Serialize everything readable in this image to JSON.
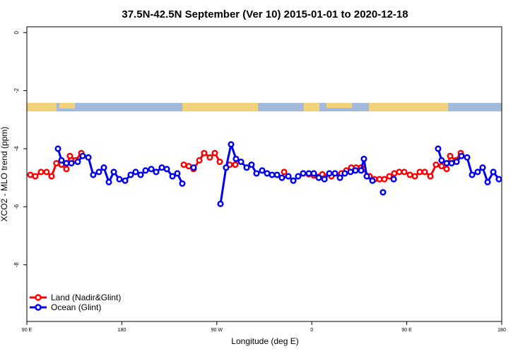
{
  "chart_data": {
    "type": "line",
    "title": "37.5N-42.5N September (Ver 10)   2015-01-01 to 2020-12-18",
    "x_label": "Longitude (deg E)",
    "y_label": "XCO2 - MLO trend (ppm)",
    "xlim": [
      90,
      540
    ],
    "ylim": [
      -9.95,
      0.2
    ],
    "xticks": [
      {
        "value": 90,
        "label": "90 E"
      },
      180,
      {
        "value": 270,
        "label": "90 W"
      },
      {
        "value": 360,
        "label": "0"
      },
      {
        "value": 450,
        "label": "90 E"
      },
      {
        "value": 540,
        "label": "180"
      }
    ],
    "yticks": [
      0,
      -2,
      -4,
      -6,
      -8
    ],
    "legend": "bottom-left",
    "series": [
      {
        "name": "Land (Nadir&Glint)",
        "color": "#ff0000",
        "x": [
          93.3,
          98,
          103.4,
          108.7,
          113.4,
          118,
          122.8,
          127.5,
          130.8,
          136.2,
          141.6,
          null,
          238.7,
          243.4,
          248,
          253.4,
          258,
          263.4,
          268.1,
          272.8,
          null,
          282.2,
          287.5,
          null,
          333.8,
          null,
          357.2,
          361.9,
          370,
          378.6,
          388,
          392.7,
          397.4,
          402,
          406.7,
          414.8,
          419.5,
          424.2,
          428.8,
          433.5,
          438.2,
          442.9,
          447.6,
          453,
          457.6,
          462.3,
          467,
          472.4,
          477.7,
          483,
          487.8,
          491.1,
          496.5,
          501.2
        ],
        "values": [
          -4.9,
          -4.95,
          -4.8,
          -4.8,
          -4.95,
          -4.5,
          -4.55,
          -4.7,
          -4.25,
          -4.4,
          -4.15,
          null,
          -4.55,
          -4.6,
          -4.7,
          -4.4,
          -4.15,
          -4.3,
          -4.15,
          -4.45,
          null,
          -4.55,
          -4.55,
          null,
          -4.8,
          null,
          -4.88,
          -4.92,
          -4.88,
          -4.95,
          -4.85,
          -4.75,
          -4.65,
          -4.65,
          -4.65,
          -4.95,
          -5.05,
          -5.05,
          -5.05,
          -4.95,
          -4.85,
          -4.8,
          -4.8,
          -4.9,
          -4.95,
          -4.8,
          -4.8,
          -4.95,
          -4.55,
          -4.6,
          -4.7,
          -4.25,
          -4.4,
          -4.15
        ]
      },
      {
        "name": "Ocean (Glint)",
        "color": "#0000ee",
        "x": [
          119.5,
          122.8,
          127.5,
          132.2,
          138.2,
          142.9,
          148.3,
          152.9,
          158.3,
          163,
          167.7,
          172.4,
          177.7,
          183.1,
          188.4,
          193.1,
          197.8,
          202.5,
          207.9,
          212.5,
          217.9,
          222.6,
          228,
          232.6,
          237.3,
          null,
          248,
          null,
          273.5,
          278.8,
          283.5,
          288.2,
          292.9,
          298.3,
          302.9,
          307.6,
          313,
          317.7,
          322.4,
          327.1,
          331.7,
          337.8,
          342.5,
          347.1,
          351.8,
          357.2,
          361.9,
          366.6,
          372,
          376.6,
          382,
          386.7,
          391.3,
          396.7,
          401.4,
          406.7,
          409.4,
          412.1,
          417.5,
          null,
          427.5,
          null,
          437.6,
          null,
          479.7,
          483,
          487.8,
          492.5,
          497.2,
          501.8,
          507.2,
          511.9,
          517.2,
          521.9,
          526.6,
          532,
          537.3
        ],
        "values": [
          -4.0,
          -4.4,
          -4.5,
          -4.5,
          -4.45,
          -4.25,
          -4.3,
          -4.9,
          -4.8,
          -4.65,
          -5.15,
          -4.8,
          -5.05,
          -5.1,
          -4.9,
          -4.8,
          -4.9,
          -4.75,
          -4.7,
          -4.8,
          -4.65,
          -4.7,
          -4.95,
          -4.85,
          -5.2,
          null,
          -4.65,
          null,
          -5.9,
          -4.65,
          -3.85,
          -4.35,
          -4.45,
          -4.65,
          -4.55,
          -4.85,
          -4.75,
          -4.85,
          -4.9,
          -4.9,
          -5.0,
          -4.95,
          -5.1,
          -4.95,
          -4.85,
          -4.85,
          -4.85,
          -5.0,
          -5.05,
          -4.85,
          -4.85,
          -5.0,
          -4.85,
          -4.8,
          -4.75,
          -4.75,
          -4.35,
          -4.95,
          -5.1,
          null,
          -5.5,
          null,
          -5.05,
          null,
          -4.0,
          -4.4,
          -4.5,
          -4.5,
          -4.45,
          -4.25,
          -4.3,
          -4.9,
          -4.8,
          -4.65,
          -5.15,
          -4.8,
          -5.05
        ]
      }
    ]
  }
}
